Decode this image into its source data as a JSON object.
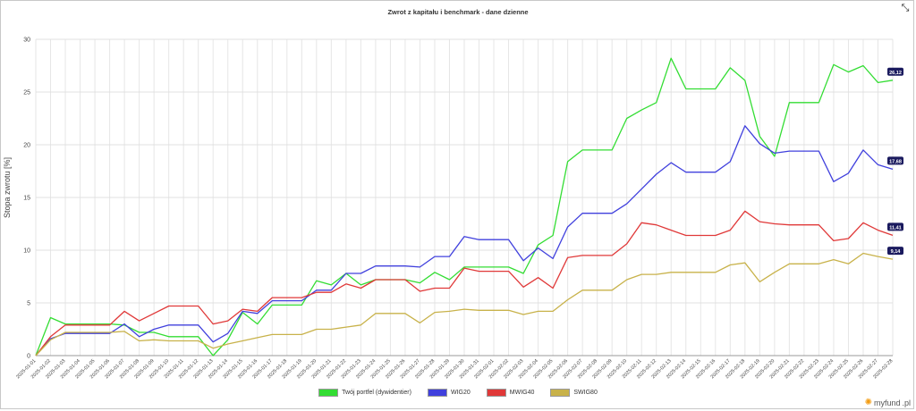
{
  "header": {
    "title": "Zwrot z kapitału i benchmark - dane dzienne",
    "expand_icon": "expand-arrows-icon"
  },
  "brand": {
    "name": "myfund",
    "suffix": ".pl"
  },
  "chart_data": {
    "type": "line",
    "title": "Zwrot z kapitału i benchmark - dane dzienne",
    "xlabel": "",
    "ylabel": "Stopa zwrotu [%]",
    "ylim": [
      0,
      30
    ],
    "yticks": [
      0,
      5,
      10,
      15,
      20,
      25,
      30
    ],
    "grid": true,
    "legend_position": "bottom",
    "categories": [
      "2025-01-01",
      "2025-01-02",
      "2025-01-03",
      "2025-01-04",
      "2025-01-05",
      "2025-01-06",
      "2025-01-07",
      "2025-01-08",
      "2025-01-09",
      "2025-01-10",
      "2025-01-11",
      "2025-01-12",
      "2025-01-13",
      "2025-01-14",
      "2025-01-15",
      "2025-01-16",
      "2025-01-17",
      "2025-01-18",
      "2025-01-19",
      "2025-01-20",
      "2025-01-21",
      "2025-01-22",
      "2025-01-23",
      "2025-01-24",
      "2025-01-25",
      "2025-01-26",
      "2025-01-27",
      "2025-01-28",
      "2025-01-29",
      "2025-01-30",
      "2025-01-31",
      "2025-02-01",
      "2025-02-02",
      "2025-02-03",
      "2025-02-04",
      "2025-02-05",
      "2025-02-06",
      "2025-02-07",
      "2025-02-08",
      "2025-02-09",
      "2025-02-10",
      "2025-02-11",
      "2025-02-12",
      "2025-02-13",
      "2025-02-14",
      "2025-02-15",
      "2025-02-16",
      "2025-02-17",
      "2025-02-18",
      "2025-02-19",
      "2025-02-20",
      "2025-02-21",
      "2025-02-22",
      "2025-02-23",
      "2025-02-24",
      "2025-02-25",
      "2025-02-26",
      "2025-02-27",
      "2025-02-28"
    ],
    "series": [
      {
        "name": "Twój portfel (dywidentier)",
        "color": "#33dd33",
        "end_label": "26,12",
        "values": [
          0,
          3.6,
          3.0,
          3.0,
          3.0,
          3.0,
          2.9,
          2.2,
          2.2,
          1.8,
          1.8,
          1.8,
          0.0,
          1.5,
          4.1,
          3.0,
          4.8,
          4.8,
          4.8,
          7.1,
          6.7,
          7.8,
          6.7,
          7.2,
          7.2,
          7.2,
          6.9,
          7.9,
          7.2,
          8.4,
          8.4,
          8.4,
          8.4,
          7.8,
          10.5,
          11.4,
          18.4,
          19.5,
          19.5,
          19.5,
          22.5,
          23.3,
          24.0,
          28.2,
          25.3,
          25.3,
          25.3,
          27.3,
          26.1,
          20.8,
          18.9,
          24.0,
          24.0,
          24.0,
          27.6,
          26.9,
          27.5,
          25.9,
          26.12
        ]
      },
      {
        "name": "WIG20",
        "color": "#4040dd",
        "end_label": "17,68",
        "values": [
          0,
          1.6,
          2.1,
          2.1,
          2.1,
          2.1,
          3.0,
          1.8,
          2.5,
          2.9,
          2.9,
          2.9,
          1.3,
          2.1,
          4.2,
          4.0,
          5.2,
          5.2,
          5.2,
          6.2,
          6.2,
          7.8,
          7.8,
          8.5,
          8.5,
          8.5,
          8.4,
          9.4,
          9.4,
          11.3,
          11.0,
          11.0,
          11.0,
          9.0,
          10.2,
          9.2,
          12.2,
          13.5,
          13.5,
          13.5,
          14.4,
          15.8,
          17.2,
          18.3,
          17.4,
          17.4,
          17.4,
          18.4,
          21.8,
          20.1,
          19.2,
          19.4,
          19.4,
          19.4,
          16.5,
          17.3,
          19.5,
          18.1,
          17.68
        ]
      },
      {
        "name": "MWIG40",
        "color": "#e03838",
        "end_label": "11,41",
        "values": [
          0,
          1.8,
          2.9,
          2.9,
          2.9,
          2.9,
          4.2,
          3.3,
          4.0,
          4.7,
          4.7,
          4.7,
          3.0,
          3.3,
          4.4,
          4.2,
          5.5,
          5.5,
          5.5,
          6.0,
          6.0,
          6.8,
          6.4,
          7.2,
          7.2,
          7.2,
          6.1,
          6.4,
          6.4,
          8.3,
          8.0,
          8.0,
          8.0,
          6.5,
          7.4,
          6.4,
          9.3,
          9.5,
          9.5,
          9.5,
          10.6,
          12.6,
          12.4,
          11.9,
          11.4,
          11.4,
          11.4,
          11.9,
          13.7,
          12.7,
          12.5,
          12.4,
          12.4,
          12.4,
          10.9,
          11.1,
          12.6,
          11.9,
          11.41
        ]
      },
      {
        "name": "SWIG80",
        "color": "#c8b24a",
        "end_label": "9,14",
        "values": [
          0,
          1.5,
          2.2,
          2.2,
          2.2,
          2.2,
          2.3,
          1.4,
          1.5,
          1.4,
          1.4,
          1.4,
          0.7,
          1.1,
          1.4,
          1.7,
          2.0,
          2.0,
          2.0,
          2.5,
          2.5,
          2.7,
          2.9,
          4.0,
          4.0,
          4.0,
          3.1,
          4.1,
          4.2,
          4.4,
          4.3,
          4.3,
          4.3,
          3.9,
          4.2,
          4.2,
          5.3,
          6.2,
          6.2,
          6.2,
          7.2,
          7.7,
          7.7,
          7.9,
          7.9,
          7.9,
          7.9,
          8.6,
          8.8,
          7.0,
          7.9,
          8.7,
          8.7,
          8.7,
          9.1,
          8.7,
          9.7,
          9.4,
          9.14
        ]
      }
    ]
  }
}
